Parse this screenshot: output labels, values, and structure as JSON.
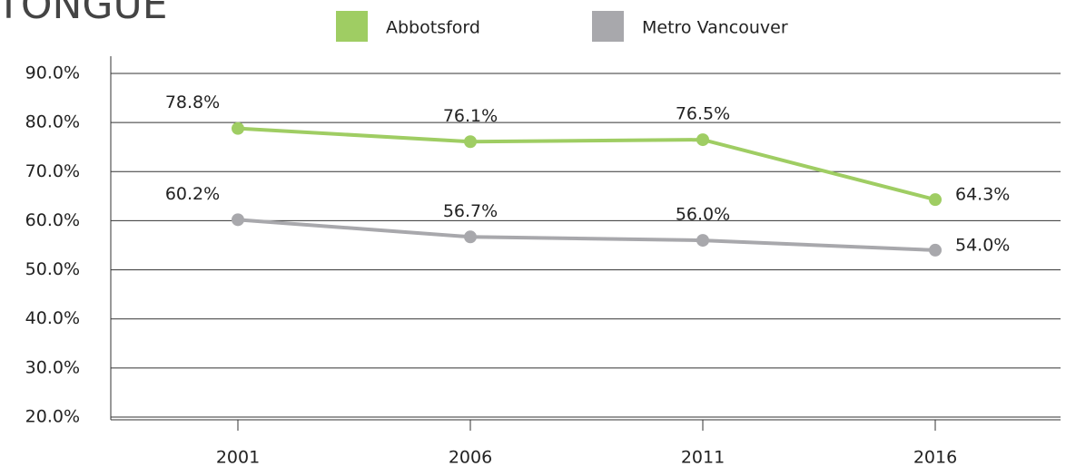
{
  "chart_data": {
    "type": "line",
    "title": "TONGUE",
    "categories": [
      "2001",
      "2006",
      "2011",
      "2016"
    ],
    "series": [
      {
        "name": "Abbotsford",
        "color": "#9fcd63",
        "values": [
          78.8,
          76.1,
          76.5,
          64.3
        ],
        "value_labels": [
          "78.8%",
          "76.1%",
          "76.5%",
          "64.3%"
        ]
      },
      {
        "name": "Metro Vancouver",
        "color": "#a8a8ac",
        "values": [
          60.2,
          56.7,
          56.0,
          54.0
        ],
        "value_labels": [
          "60.2%",
          "56.7%",
          "56.0%",
          "54.0%"
        ]
      }
    ],
    "ylim": [
      20,
      90
    ],
    "yticks": [
      {
        "value": 20,
        "label": "20.0%"
      },
      {
        "value": 30,
        "label": "30.0%"
      },
      {
        "value": 40,
        "label": "40.0%"
      },
      {
        "value": 50,
        "label": "50.0%"
      },
      {
        "value": 60,
        "label": "60.0%"
      },
      {
        "value": 70,
        "label": "70.0%"
      },
      {
        "value": 80,
        "label": "80.0%"
      },
      {
        "value": 90,
        "label": "90.0%"
      }
    ],
    "grid": true,
    "legend": "top"
  }
}
